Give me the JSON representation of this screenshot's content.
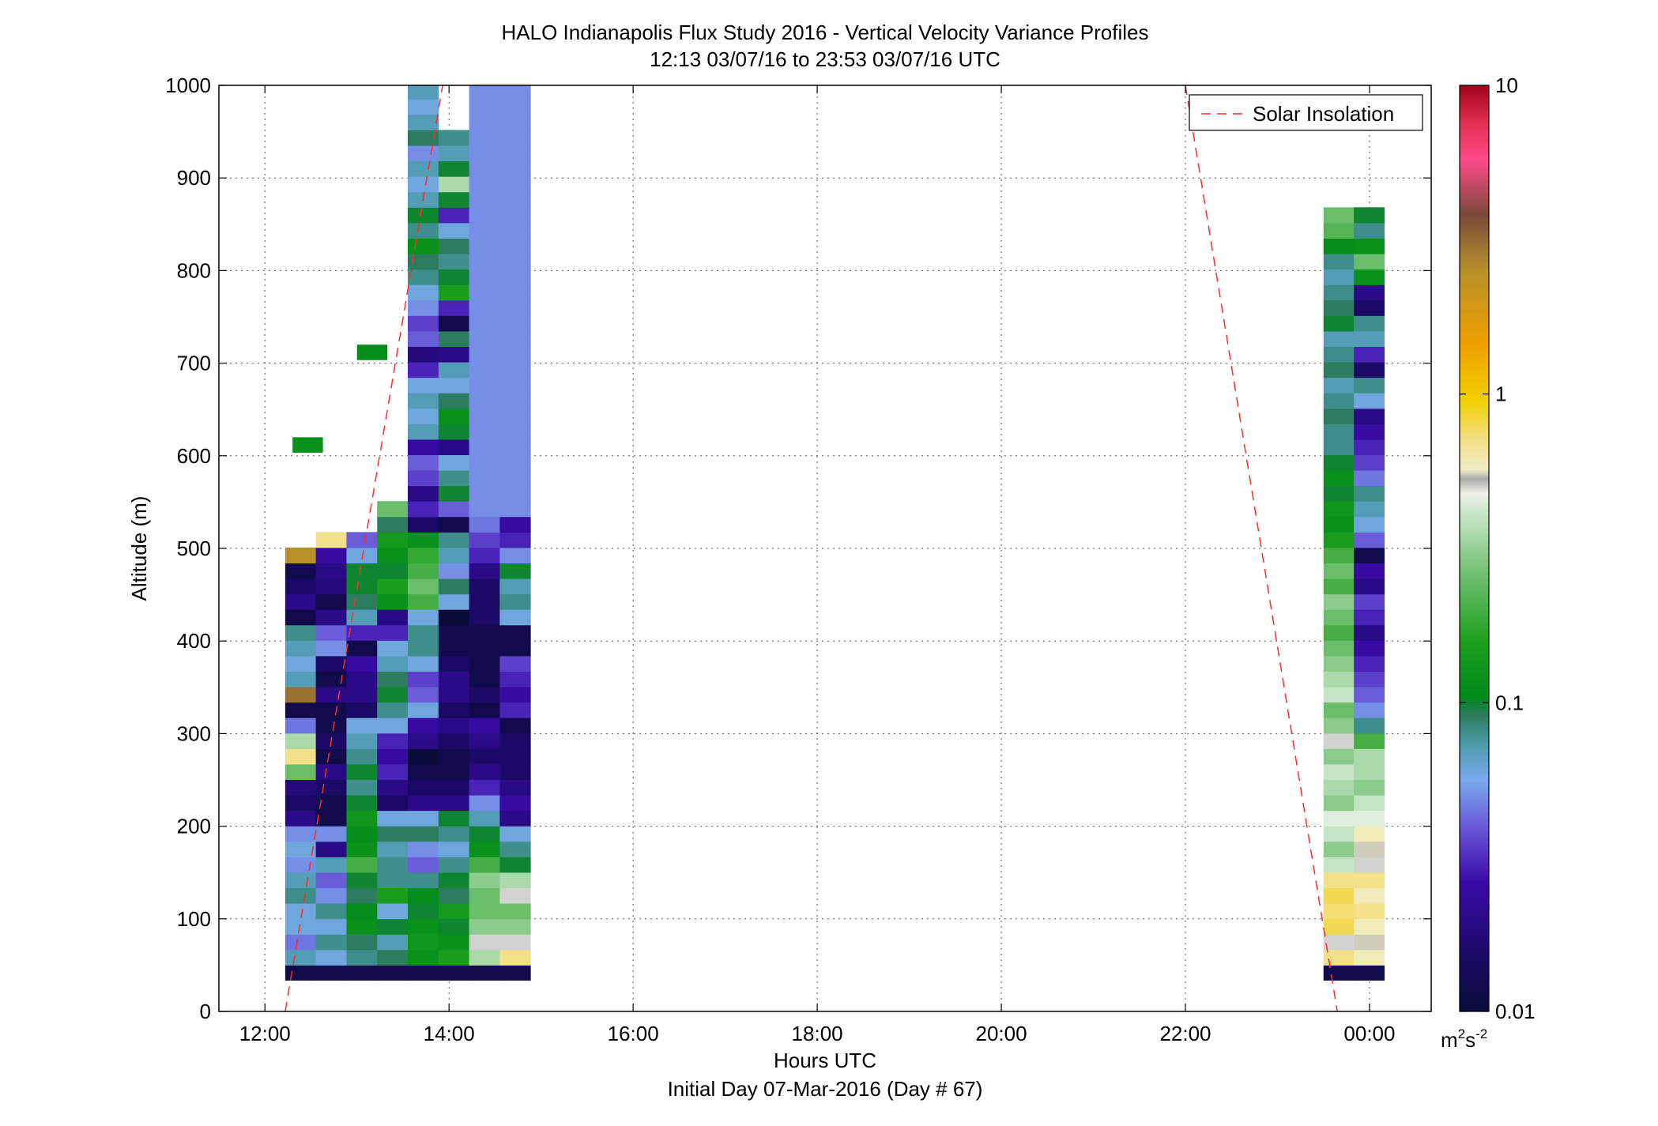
{
  "chart_data": {
    "type": "heatmap",
    "title": "HALO Indianapolis Flux Study 2016 - Vertical Velocity Variance Profiles",
    "subtitle": "12:13 03/07/16 to 23:53 03/07/16  UTC",
    "xlabel": "Hours UTC",
    "xlabel2": "Initial Day 07-Mar-2016 (Day # 67)",
    "ylabel": "Altitude (m)",
    "xlim": [
      11.5,
      24.67
    ],
    "ylim": [
      0,
      1000
    ],
    "x_ticks": [
      12,
      14,
      16,
      18,
      20,
      22,
      24
    ],
    "x_tick_labels": [
      "12:00",
      "14:00",
      "16:00",
      "18:00",
      "20:00",
      "22:00",
      "00:00"
    ],
    "y_ticks": [
      0,
      100,
      200,
      300,
      400,
      500,
      600,
      700,
      800,
      900,
      1000
    ],
    "y_tick_labels": [
      "0",
      "100",
      "200",
      "300",
      "400",
      "500",
      "600",
      "700",
      "800",
      "900",
      "1000"
    ],
    "grid": true,
    "colorbar": {
      "scale": "log",
      "range": [
        0.01,
        10
      ],
      "tick_values": [
        0.01,
        0.1,
        1,
        10
      ],
      "tick_labels": [
        "0.01",
        "0.1",
        "1",
        "10"
      ],
      "unit_base": "m",
      "unit_sup1": "2",
      "unit_mid": "s",
      "unit_sup2": "-2"
    },
    "legend": {
      "position": "top-right",
      "entries": [
        "Solar Insolation"
      ]
    },
    "solar_insolation_lines": [
      {
        "x": [
          12.22,
          13.93
        ],
        "y": [
          0,
          1000
        ]
      },
      {
        "x": [
          22.0,
          23.65
        ],
        "y": [
          1000,
          0
        ]
      }
    ],
    "cell_height_m": 16.7,
    "profiles_left": {
      "x_start": 12.22,
      "x_step": 0.333,
      "first_gate_m": 50,
      "columns": [
        {
          "range": [
            0,
            8
          ],
          "values": [
            0.012,
            0.08,
            0.03,
            0.045,
            0.06,
            0.1,
            0.08,
            0.07,
            0.05
          ]
        },
        {
          "range": [
            0,
            2
          ],
          "values": [
            0.012,
            0.06,
            0.05
          ]
        },
        {
          "range": [
            0,
            2
          ],
          "values": [
            0.012,
            0.09,
            0.07
          ]
        },
        {
          "range": [
            0,
            2
          ],
          "values": [
            0.012,
            0.08,
            0.12
          ]
        }
      ],
      "top_blocks": [
        {
          "x": 12.3,
          "alt_top": 620,
          "v": 0.12
        },
        {
          "x": 13.0,
          "alt_top": 720,
          "v": 0.11
        }
      ]
    },
    "profiles_right": {
      "x_start": 23.5,
      "x_step": 0.33,
      "first_gate_m": 50,
      "columns": [
        {
          "values": [
            0.012,
            0.7,
            0.5,
            0.8,
            0.75,
            0.8,
            0.7,
            0.4,
            0.3,
            0.4,
            0.45,
            0.3,
            0.35,
            0.4,
            0.3,
            0.5,
            0.3,
            0.25,
            0.4,
            0.35,
            0.3,
            0.25,
            0.2,
            0.25,
            0.3,
            0.2,
            0.25,
            0.2,
            0.15,
            0.12,
            0.13,
            0.1,
            0.12,
            0.1,
            0.08,
            0.08,
            0.09,
            0.08,
            0.07,
            0.09,
            0.08,
            0.07,
            0.1,
            0.09,
            0.08,
            0.07,
            0.08,
            0.11,
            0.22,
            0.25
          ]
        },
        {
          "values": [
            0.012,
            0.6,
            0.55,
            0.6,
            0.7,
            0.6,
            0.7,
            0.5,
            0.55,
            0.6,
            0.45,
            0.4,
            0.3,
            0.35,
            0.35,
            0.2,
            0.08,
            0.05,
            0.04,
            0.035,
            0.03,
            0.025,
            0.02,
            0.03,
            0.035,
            0.02,
            0.025,
            0.012,
            0.04,
            0.06,
            0.07,
            0.08,
            0.045,
            0.035,
            0.03,
            0.025,
            0.02,
            0.06,
            0.08,
            0.015,
            0.03,
            0.07,
            0.08,
            0.015,
            0.02,
            0.12,
            0.25,
            0.12,
            0.08,
            0.1
          ]
        }
      ]
    }
  }
}
